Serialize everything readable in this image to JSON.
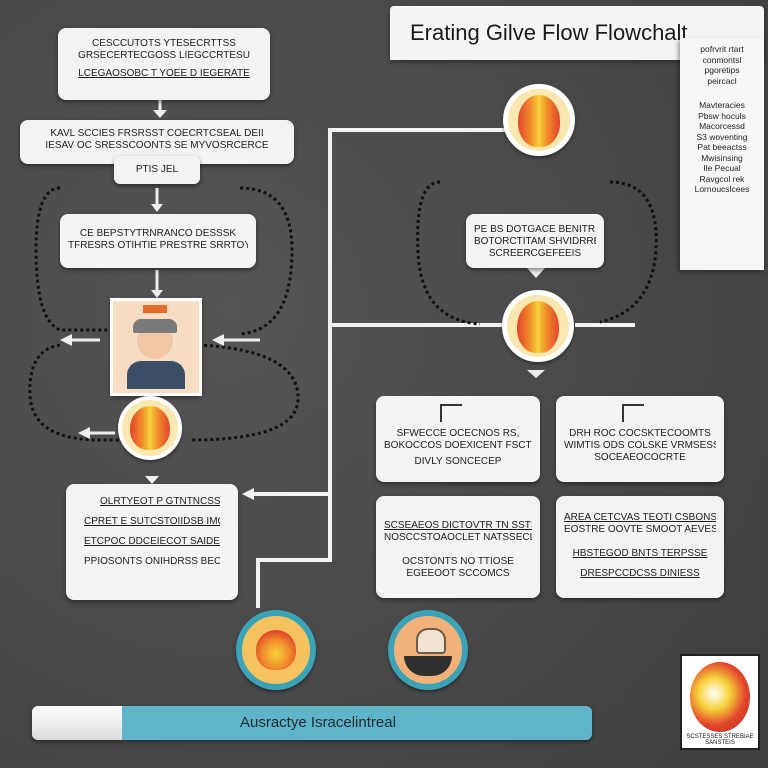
{
  "title": "Erating Gilve Flow Flowchalt",
  "side_panel": {
    "top_lines": [
      "pofrvrit rtart",
      "conmontsl",
      "pgoretips",
      "peircacl"
    ],
    "bottom_lines": [
      "Mavteracies",
      "Pbsw hoculs",
      "Macorcessd",
      "S3 woventing",
      "Pat beeactss",
      "Mwisinsing",
      "Ile Pecual",
      "Ravgcol rek",
      "Lornoucslcees"
    ]
  },
  "left_column": {
    "box1": [
      "CESCCUTOTS YTESECRTTSS",
      "GRSECERTECGOSS LIEGCCRTESU",
      "LCEGAOSOBC T YOEE D IEGERATE"
    ],
    "box2": [
      "KAVL SCCIES FRSRSST COECRTCSEAL DEII",
      "IESAV OC SRESSCOONTS SE MYVOSRCERCE"
    ],
    "box2_sub": "PTIS JEL",
    "box3": [
      "CE BEPSTYTRNRANCO DESSSK",
      "TFRESRS OTIHTIE PRESTRE SRRTOY"
    ],
    "box4": [
      "OLRTYEOT P GTNTNCSS",
      "CPRET E SUTCSTOIIDSB IMOSROPLE",
      "ETCPOC DDCEIECOT SAIDE SURTSS",
      "PPIOSONTS ONIHDRSS BEOMTSE"
    ]
  },
  "right_column": {
    "box1": [
      "PE BS DOTGACE BENITRIA,",
      "BOTORCTITAM SHVIDRREET",
      "SCREERCGEFEEIS"
    ],
    "card_a": [
      "SFWECCE OCECNOS RS,",
      "BOKOCCOS DOEXICENT FSCTE",
      "DIVLY SONCECEP"
    ],
    "card_b": [
      "DRH ROC COCSKTECOOMTS",
      "WIMTIS ODS COLSKE VRMSESS",
      "SOCEAEOCOCRTE"
    ],
    "card_c": [
      "SCSEAEOS DICTOVTR TN SSTSE",
      "NOSCCSTOAOCLET NATSSECLOS",
      "OCSTONTS NO TTIOSE",
      "EGEEOOT SCCOMCS"
    ],
    "card_d": [
      "AREA CETCVAS TEOTI CSBONSS",
      "EOSTRE OOVTE SMOOT AEVES",
      "HBSTEGOD BNTS TERPSSE",
      "DRESPCCDCSS DINIESS"
    ]
  },
  "bottom_bar": {
    "label": "Ausractye Isracelintreal"
  },
  "logo": {
    "label": "SCSTESSES STREBIAE SANSTEIS"
  },
  "colors": {
    "background": "#4a4a4a",
    "card": "#f3f3f3",
    "accent_teal": "#5fb4c9",
    "badge_orange": "#f08a2a",
    "badge_yellow": "#f6d23a",
    "badge_red": "#e2452c"
  },
  "icons": [
    "orange-badge-icon",
    "person-portrait-icon",
    "doc-flag-icon",
    "toilet-icon"
  ]
}
